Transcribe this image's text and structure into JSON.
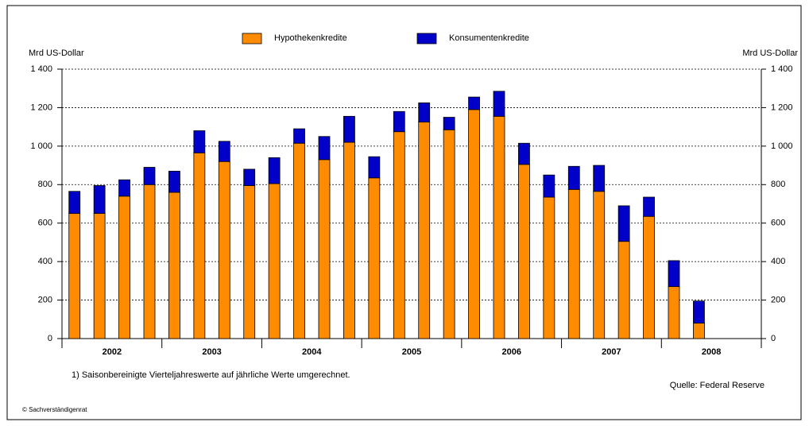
{
  "chart_data": {
    "type": "stacked_bar",
    "y_label": "Mrd US-Dollar",
    "y2_label": "Mrd US-Dollar",
    "categories": [
      null,
      null,
      null,
      null,
      null,
      null,
      null,
      null,
      null,
      null,
      null,
      null,
      null,
      null,
      null,
      null,
      null,
      null,
      null,
      null,
      null,
      null,
      null,
      null,
      null,
      null,
      null,
      null
    ],
    "year_labels": [
      "2002",
      "2003",
      "2004",
      "2005",
      "2006",
      "2007",
      "2008"
    ],
    "series": [
      {
        "name": "Hypothekenkredite",
        "color": "#ff8c00",
        "values": [
          650,
          650,
          740,
          800,
          760,
          965,
          920,
          795,
          805,
          1015,
          930,
          1020,
          835,
          1075,
          1125,
          1085,
          1190,
          1155,
          905,
          735,
          775,
          765,
          505,
          635,
          270,
          80,
          null,
          null
        ]
      },
      {
        "name": "Konsumentenkredite",
        "color": "#0000c8",
        "values": [
          115,
          145,
          85,
          90,
          110,
          115,
          105,
          85,
          135,
          75,
          120,
          135,
          110,
          105,
          100,
          65,
          65,
          130,
          110,
          115,
          120,
          135,
          185,
          100,
          135,
          115,
          null,
          null
        ]
      }
    ],
    "ylim": [
      0,
      1400
    ],
    "yticks": [
      0,
      200,
      400,
      600,
      800,
      {
        "value": 1000,
        "label": "1 000"
      },
      {
        "value": 1200,
        "label": "1 200"
      },
      {
        "value": 1400,
        "label": "1 400"
      }
    ],
    "y2lim": [
      0,
      1400
    ],
    "y2ticks": [
      0,
      200,
      400,
      600,
      800,
      {
        "value": 1000,
        "label": "1 000"
      },
      {
        "value": 1200,
        "label": "1 200"
      },
      {
        "value": 1400,
        "label": "1 400"
      }
    ],
    "grid": true,
    "footnote": "1) Saisonbereinigte Vierteljahreswerte auf jährliche Werte umgerechnet.",
    "source": "Quelle: Federal Reserve",
    "copyright": "© Sachverständigenrat"
  }
}
